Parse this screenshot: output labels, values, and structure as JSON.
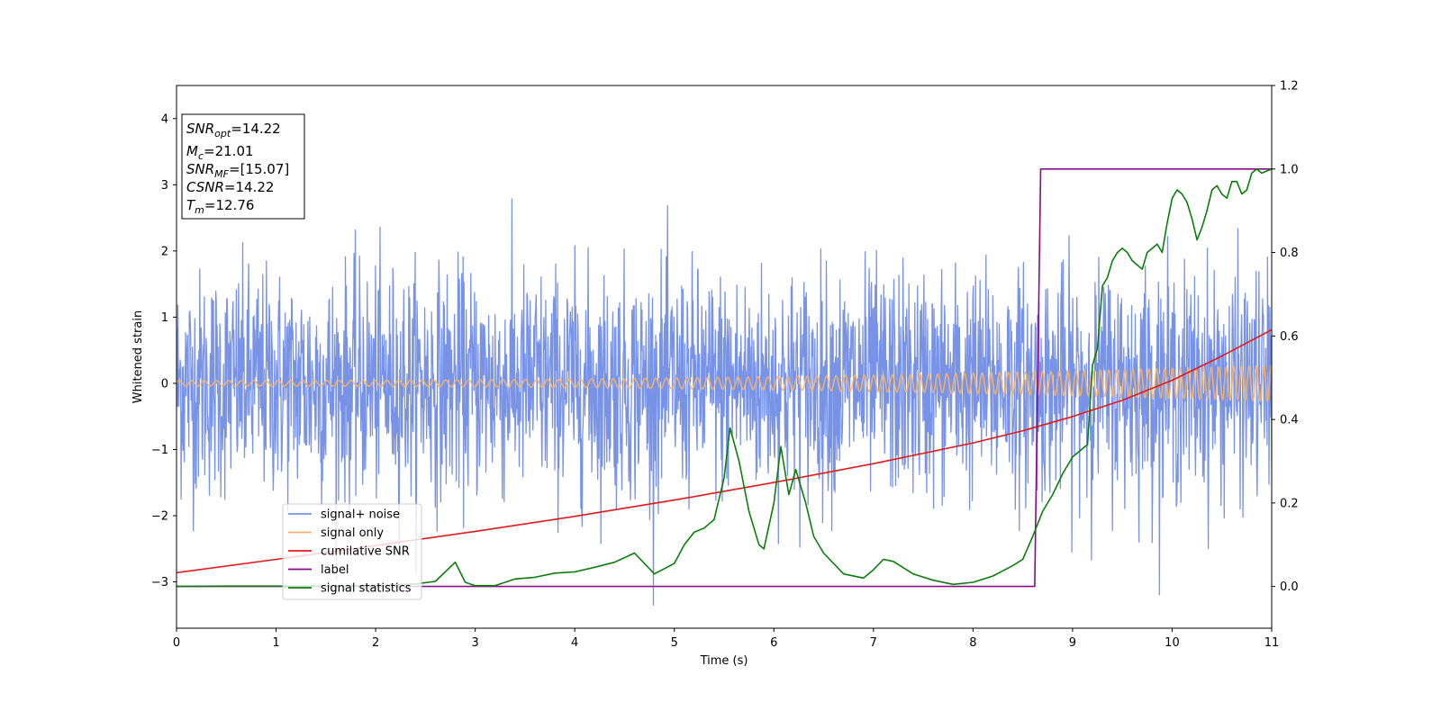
{
  "chart_data": {
    "type": "line",
    "xlabel": "Time (s)",
    "ylabel_left": "Whitened strain",
    "ylabel_right": "",
    "xlim": [
      0,
      11
    ],
    "ylim_left": [
      -3.7,
      4.5
    ],
    "ylim_right": [
      -0.1,
      1.2
    ],
    "x_ticks": [
      0,
      1,
      2,
      3,
      4,
      5,
      6,
      7,
      8,
      9,
      10,
      11
    ],
    "y_ticks_left": [
      -3,
      -2,
      -1,
      0,
      1,
      2,
      3,
      4
    ],
    "y_ticks_right": [
      0.0,
      0.2,
      0.4,
      0.6,
      0.8,
      1.0,
      1.2
    ],
    "grid": false,
    "legend_placement": "lower-left",
    "annotation": {
      "lines": [
        {
          "sym": "SNR",
          "sub": "opt",
          "value": "=14.22"
        },
        {
          "sym": "M",
          "sub": "c",
          "value": "=21.01"
        },
        {
          "sym": "SNR",
          "sub": "MF",
          "value": "=[15.07]"
        },
        {
          "sym": "CSNR",
          "sub": "",
          "value": "=14.22"
        },
        {
          "sym": "T",
          "sub": "m",
          "value": "=12.76"
        }
      ]
    },
    "series": [
      {
        "name": "signal+ noise",
        "axis": "left",
        "color": "#7893e6",
        "kind": "noise",
        "noise_std": 0.85,
        "noise_peak": 3.35,
        "samples": 2400
      },
      {
        "name": "signal only",
        "axis": "left",
        "color": "#f4b26a",
        "kind": "chirp",
        "amplitude_start": 0.04,
        "amplitude_end": 0.27
      },
      {
        "name": "cumilative SNR",
        "axis": "right",
        "color": "#e8191b",
        "x": [
          0,
          1,
          2,
          3,
          4,
          5,
          6,
          7,
          8,
          8.5,
          9,
          9.5,
          10,
          10.5,
          11
        ],
        "values": [
          0.033,
          0.065,
          0.098,
          0.132,
          0.168,
          0.207,
          0.249,
          0.294,
          0.344,
          0.373,
          0.407,
          0.446,
          0.494,
          0.552,
          0.615
        ]
      },
      {
        "name": "label",
        "axis": "right",
        "color": "#8b0a8b",
        "x": [
          0,
          8.62,
          8.68,
          11
        ],
        "values": [
          0,
          0,
          1,
          1
        ]
      },
      {
        "name": "signal statistics",
        "axis": "right",
        "color": "#0a7d0a",
        "x": [
          0,
          0.5,
          1,
          1.5,
          2,
          2.4,
          2.6,
          2.8,
          2.9,
          3.0,
          3.2,
          3.4,
          3.6,
          3.8,
          4.0,
          4.2,
          4.4,
          4.6,
          4.8,
          5.0,
          5.1,
          5.2,
          5.3,
          5.4,
          5.5,
          5.56,
          5.65,
          5.75,
          5.85,
          5.9,
          6.0,
          6.07,
          6.15,
          6.22,
          6.32,
          6.4,
          6.5,
          6.7,
          6.9,
          7.0,
          7.1,
          7.2,
          7.4,
          7.6,
          7.8,
          8.0,
          8.2,
          8.4,
          8.5,
          8.6,
          8.7,
          8.8,
          8.9,
          9.0,
          9.1,
          9.15,
          9.2,
          9.25,
          9.3,
          9.35,
          9.4,
          9.45,
          9.5,
          9.55,
          9.6,
          9.65,
          9.7,
          9.75,
          9.8,
          9.85,
          9.9,
          9.95,
          10.0,
          10.05,
          10.1,
          10.15,
          10.2,
          10.25,
          10.3,
          10.35,
          10.4,
          10.45,
          10.5,
          10.55,
          10.6,
          10.65,
          10.7,
          10.75,
          10.8,
          10.85,
          10.9,
          11.0
        ],
        "values": [
          0.0,
          0.001,
          0.001,
          0.001,
          0.002,
          0.006,
          0.012,
          0.058,
          0.01,
          0.002,
          0.002,
          0.018,
          0.022,
          0.032,
          0.035,
          0.046,
          0.058,
          0.08,
          0.03,
          0.055,
          0.1,
          0.13,
          0.14,
          0.16,
          0.26,
          0.38,
          0.3,
          0.18,
          0.1,
          0.09,
          0.2,
          0.335,
          0.22,
          0.28,
          0.2,
          0.12,
          0.08,
          0.03,
          0.02,
          0.04,
          0.065,
          0.06,
          0.03,
          0.015,
          0.005,
          0.01,
          0.025,
          0.05,
          0.065,
          0.12,
          0.18,
          0.22,
          0.27,
          0.31,
          0.33,
          0.34,
          0.53,
          0.57,
          0.72,
          0.74,
          0.78,
          0.8,
          0.81,
          0.8,
          0.78,
          0.77,
          0.76,
          0.8,
          0.81,
          0.82,
          0.8,
          0.87,
          0.93,
          0.95,
          0.94,
          0.92,
          0.88,
          0.83,
          0.86,
          0.9,
          0.95,
          0.96,
          0.94,
          0.93,
          0.97,
          0.97,
          0.94,
          0.95,
          0.99,
          1.0,
          0.99,
          1.0
        ]
      }
    ]
  }
}
